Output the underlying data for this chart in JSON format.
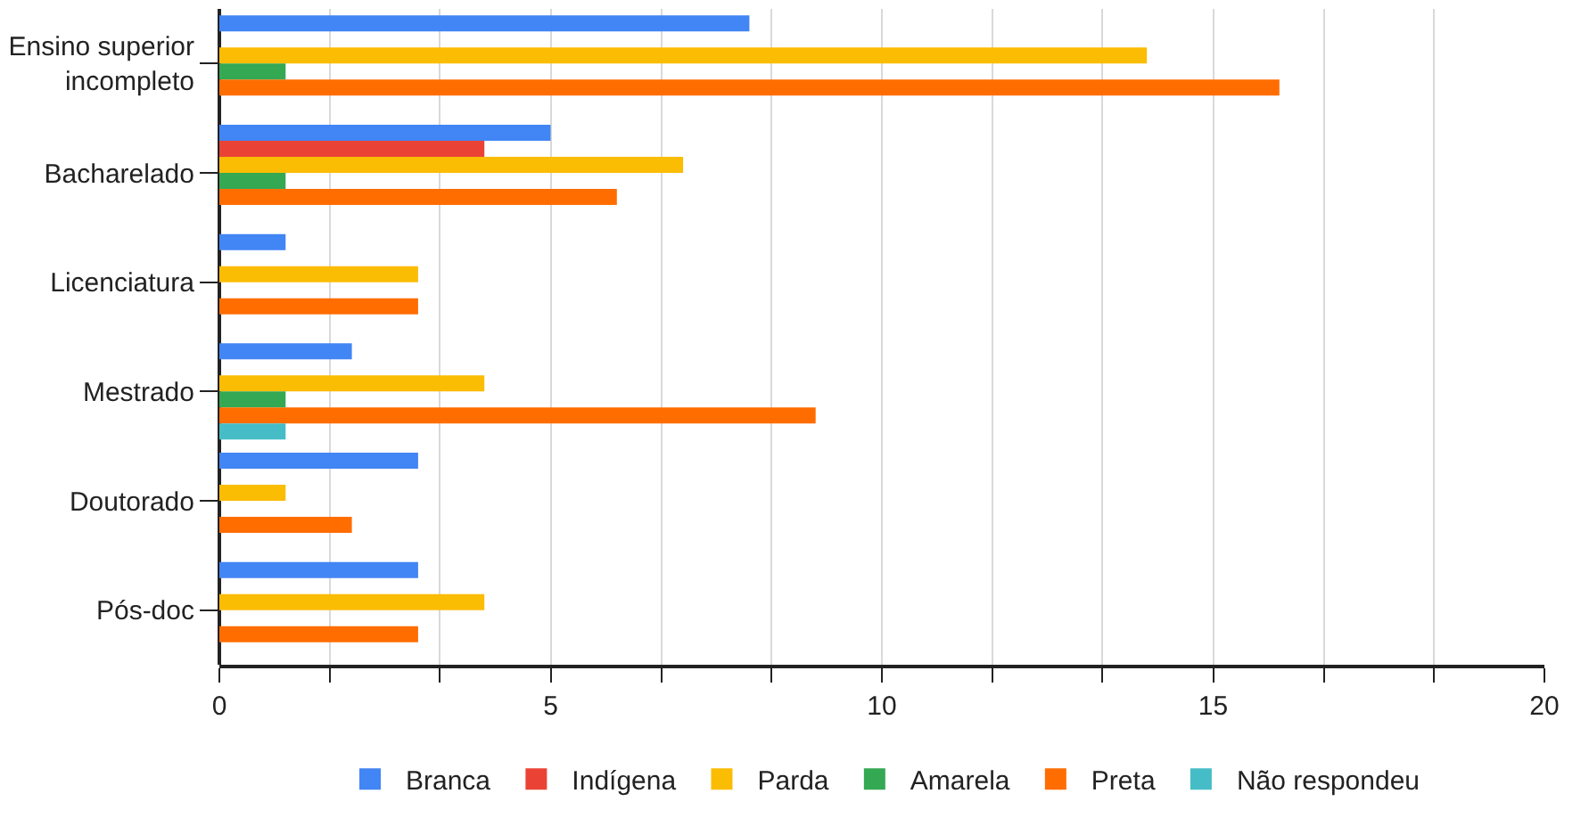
{
  "chart_data": {
    "type": "bar",
    "orientation": "horizontal",
    "categories": [
      "Ensino superior incompleto",
      "Bacharelado",
      "Licenciatura",
      "Mestrado",
      "Doutorado",
      "Pós-doc"
    ],
    "series": [
      {
        "name": "Branca",
        "color": "#4285f4",
        "values": [
          8,
          5,
          1,
          2,
          3,
          3
        ]
      },
      {
        "name": "Indígena",
        "color": "#ea4335",
        "values": [
          null,
          4,
          null,
          null,
          null,
          null
        ]
      },
      {
        "name": "Parda",
        "color": "#fbbc04",
        "values": [
          14,
          7,
          3,
          4,
          1,
          4
        ]
      },
      {
        "name": "Amarela",
        "color": "#34a853",
        "values": [
          1,
          1,
          null,
          1,
          null,
          null
        ]
      },
      {
        "name": "Preta",
        "color": "#ff6d01",
        "values": [
          16,
          6,
          3,
          9,
          2,
          3
        ]
      },
      {
        "name": "Não respondeu",
        "color": "#46bdc6",
        "values": [
          null,
          null,
          null,
          1,
          null,
          null
        ]
      }
    ],
    "xlim": [
      0,
      20
    ],
    "xticks": [
      0,
      {
        "value": 1.67,
        "label": null
      },
      {
        "value": 3.33,
        "label": null
      },
      5,
      {
        "value": 6.67,
        "label": null
      },
      {
        "value": 8.33,
        "label": null
      },
      10,
      {
        "value": 11.67,
        "label": null
      },
      {
        "value": 13.33,
        "label": null
      },
      15,
      {
        "value": 16.67,
        "label": null
      },
      {
        "value": 18.33,
        "label": null
      },
      20
    ],
    "grid": "x",
    "legend": "bottom"
  }
}
